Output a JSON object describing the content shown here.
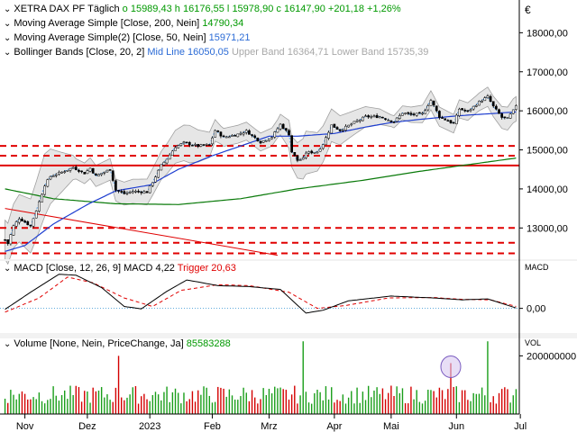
{
  "colors": {
    "up": "#1a9e1a",
    "down": "#d40000",
    "ma200": "#0a7a0a",
    "ma50": "#1f3fd0",
    "bb_mid": "#3c8fe0",
    "bb_band": "#bdbdbd",
    "sr_lines": "#e00000",
    "trend_line": "#e00000",
    "macd": "#000000",
    "trigger": "#e00000",
    "volume_up": "#1a9e1a",
    "volume_down": "#d40000",
    "highlight_circle": "#7a5cc0"
  },
  "legend": {
    "main": {
      "icon": "chevron-down-icon",
      "name": "XETRA DAX PF",
      "period": "Täglich",
      "o_label": "o",
      "o_value": "15989,43",
      "h_label": "h",
      "h_value": "16176,55",
      "l_label": "l",
      "l_value": "15978,90",
      "c_label": "c",
      "c_value": "16147,90",
      "change": "+201,18",
      "change_pct": "+1,26%"
    },
    "ma200": {
      "text": "Moving Average Simple [Close, 200, Nein]",
      "value": "14790,34"
    },
    "ma50": {
      "text": "Moving Average Simple(2) [Close, 50, Nein]",
      "value": "15971,21"
    },
    "bb": {
      "text": "Bollinger Bands [Close, 20, 2]",
      "mid_label": "Mid Line",
      "mid_value": "16050,05",
      "upper_label": "Upper Band",
      "upper_value": "16364,71",
      "lower_label": "Lower Band",
      "lower_value": "15735,39"
    },
    "macd": {
      "text": "MACD [Close, 12, 26, 9]",
      "macd_label": "MACD",
      "macd_value": "4,22",
      "trigger_label": "Trigger",
      "trigger_value": "20,63"
    },
    "volume": {
      "text": "Volume [None, Nein, PriceChange, Ja]",
      "value": "85583288"
    }
  },
  "axes": {
    "currency": "€",
    "price_ticks": [
      "18000,00",
      "17000,00",
      "16000,00",
      "15000,00",
      "14000,00",
      "13000,00"
    ],
    "macd_unit": "MACD",
    "macd_ticks": [
      "0,00"
    ],
    "volume_unit": "VOL",
    "volume_ticks": [
      "200000000"
    ],
    "month_labels": [
      "Nov",
      "Dez",
      "2023",
      "Feb",
      "Mrz",
      "Apr",
      "Mai",
      "Jun",
      "Jul"
    ]
  },
  "chart_data": {
    "type": "candlestick",
    "title": "XETRA DAX PF",
    "period": "Täglich",
    "x_range": [
      "2022-10-21",
      "2023-06-30"
    ],
    "price_ylim": [
      12200,
      18700
    ],
    "grid": false,
    "price_anchors": [
      [
        "2022-10-21",
        12700
      ],
      [
        "2022-10-24",
        12600
      ],
      [
        "2022-10-26",
        13050
      ],
      [
        "2022-10-28",
        13250
      ],
      [
        "2022-10-31",
        13200
      ],
      [
        "2022-11-03",
        13050
      ],
      [
        "2022-11-07",
        13450
      ],
      [
        "2022-11-10",
        14100
      ],
      [
        "2022-11-14",
        14320
      ],
      [
        "2022-11-18",
        14430
      ],
      [
        "2022-11-24",
        14550
      ],
      [
        "2022-11-30",
        14400
      ],
      [
        "2022-12-02",
        14530
      ],
      [
        "2022-12-06",
        14330
      ],
      [
        "2022-12-13",
        14500
      ],
      [
        "2022-12-15",
        13970
      ],
      [
        "2022-12-20",
        13880
      ],
      [
        "2022-12-23",
        13940
      ],
      [
        "2022-12-30",
        13920
      ],
      [
        "2023-01-03",
        14180
      ],
      [
        "2023-01-06",
        14600
      ],
      [
        "2023-01-10",
        14770
      ],
      [
        "2023-01-13",
        15080
      ],
      [
        "2023-01-18",
        15180
      ],
      [
        "2023-01-25",
        15100
      ],
      [
        "2023-01-31",
        15130
      ],
      [
        "2023-02-02",
        15500
      ],
      [
        "2023-02-07",
        15320
      ],
      [
        "2023-02-14",
        15400
      ],
      [
        "2023-02-17",
        15480
      ],
      [
        "2023-02-24",
        15200
      ],
      [
        "2023-03-02",
        15330
      ],
      [
        "2023-03-07",
        15650
      ],
      [
        "2023-03-10",
        15400
      ],
      [
        "2023-03-13",
        14950
      ],
      [
        "2023-03-15",
        14730
      ],
      [
        "2023-03-17",
        14770
      ],
      [
        "2023-03-20",
        14930
      ],
      [
        "2023-03-24",
        14950
      ],
      [
        "2023-03-28",
        15150
      ],
      [
        "2023-03-31",
        15630
      ],
      [
        "2023-04-05",
        15500
      ],
      [
        "2023-04-12",
        15700
      ],
      [
        "2023-04-18",
        15850
      ],
      [
        "2023-04-25",
        15850
      ],
      [
        "2023-05-02",
        15720
      ],
      [
        "2023-05-05",
        15950
      ],
      [
        "2023-05-10",
        15900
      ],
      [
        "2023-05-16",
        15920
      ],
      [
        "2023-05-19",
        16270
      ],
      [
        "2023-05-24",
        15850
      ],
      [
        "2023-05-31",
        15670
      ],
      [
        "2023-06-02",
        16050
      ],
      [
        "2023-06-07",
        15980
      ],
      [
        "2023-06-13",
        16230
      ],
      [
        "2023-06-16",
        16360
      ],
      [
        "2023-06-20",
        16110
      ],
      [
        "2023-06-23",
        15830
      ],
      [
        "2023-06-27",
        15800
      ],
      [
        "2023-06-29",
        16000
      ],
      [
        "2023-06-30",
        16148
      ]
    ],
    "ma200_anchors": [
      [
        "2022-10-21",
        14000
      ],
      [
        "2022-11-15",
        13750
      ],
      [
        "2022-12-15",
        13620
      ],
      [
        "2023-01-15",
        13600
      ],
      [
        "2023-02-15",
        13750
      ],
      [
        "2023-03-15",
        14000
      ],
      [
        "2023-04-15",
        14220
      ],
      [
        "2023-05-15",
        14450
      ],
      [
        "2023-06-30",
        14790
      ]
    ],
    "ma50_anchors": [
      [
        "2022-10-21",
        12400
      ],
      [
        "2022-11-01",
        12550
      ],
      [
        "2022-11-15",
        13100
      ],
      [
        "2022-12-01",
        13600
      ],
      [
        "2022-12-15",
        13950
      ],
      [
        "2023-01-01",
        14100
      ],
      [
        "2023-01-15",
        14500
      ],
      [
        "2023-02-01",
        14850
      ],
      [
        "2023-02-15",
        15100
      ],
      [
        "2023-03-01",
        15350
      ],
      [
        "2023-03-15",
        15350
      ],
      [
        "2023-04-01",
        15420
      ],
      [
        "2023-04-15",
        15570
      ],
      [
        "2023-05-01",
        15700
      ],
      [
        "2023-05-15",
        15780
      ],
      [
        "2023-06-01",
        15870
      ],
      [
        "2023-06-30",
        15971
      ]
    ],
    "bb_mid_value": 16050.05,
    "bb_upper_value": 16364.71,
    "bb_lower_value": 15735.39,
    "bb_half_width_anchors": [
      [
        "2022-10-21",
        500
      ],
      [
        "2022-11-10",
        800
      ],
      [
        "2022-11-25",
        260
      ],
      [
        "2022-12-15",
        280
      ],
      [
        "2023-01-05",
        350
      ],
      [
        "2023-01-20",
        480
      ],
      [
        "2023-02-05",
        230
      ],
      [
        "2023-03-05",
        230
      ],
      [
        "2023-03-20",
        550
      ],
      [
        "2023-04-10",
        330
      ],
      [
        "2023-05-01",
        150
      ],
      [
        "2023-05-20",
        250
      ],
      [
        "2023-06-10",
        220
      ],
      [
        "2023-06-30",
        315
      ]
    ],
    "support_resistance_dashed": [
      15100,
      14850,
      13000,
      12620,
      12350
    ],
    "support_resistance_solid": [
      14600
    ],
    "trend_line": {
      "from": [
        "2022-10-21",
        13500
      ],
      "to": [
        "2023-03-06",
        12300
      ]
    },
    "macd_ylim": [
      -260,
      500
    ],
    "macd_anchors": [
      [
        "2022-10-21",
        -10
      ],
      [
        "2022-11-03",
        170
      ],
      [
        "2022-11-17",
        360
      ],
      [
        "2022-11-25",
        350
      ],
      [
        "2022-12-08",
        220
      ],
      [
        "2022-12-20",
        20
      ],
      [
        "2022-12-28",
        -5
      ],
      [
        "2023-01-10",
        180
      ],
      [
        "2023-01-19",
        300
      ],
      [
        "2023-02-03",
        240
      ],
      [
        "2023-02-20",
        230
      ],
      [
        "2023-03-07",
        200
      ],
      [
        "2023-03-20",
        -50
      ],
      [
        "2023-03-28",
        -20
      ],
      [
        "2023-04-10",
        80
      ],
      [
        "2023-05-01",
        130
      ],
      [
        "2023-05-20",
        110
      ],
      [
        "2023-06-05",
        90
      ],
      [
        "2023-06-16",
        100
      ],
      [
        "2023-06-30",
        4.22
      ]
    ],
    "trigger_anchors": [
      [
        "2022-10-21",
        -40
      ],
      [
        "2022-11-08",
        110
      ],
      [
        "2022-11-22",
        330
      ],
      [
        "2022-12-05",
        270
      ],
      [
        "2022-12-20",
        110
      ],
      [
        "2023-01-03",
        20
      ],
      [
        "2023-01-17",
        190
      ],
      [
        "2023-02-03",
        250
      ],
      [
        "2023-02-20",
        240
      ],
      [
        "2023-03-10",
        170
      ],
      [
        "2023-03-24",
        0
      ],
      [
        "2023-04-07",
        30
      ],
      [
        "2023-04-28",
        110
      ],
      [
        "2023-05-20",
        115
      ],
      [
        "2023-06-05",
        95
      ],
      [
        "2023-06-19",
        90
      ],
      [
        "2023-06-30",
        20.63
      ]
    ],
    "volume_ylim": [
      0,
      260000000
    ],
    "volume_base": 70000000,
    "volume_spikes": [
      [
        "2022-12-16",
        200000000
      ],
      [
        "2023-03-17",
        250000000
      ],
      [
        "2023-05-30",
        175000000
      ],
      [
        "2023-06-16",
        250000000
      ]
    ],
    "last_volume": 85583288,
    "highlight_circle_date": "2023-05-30"
  }
}
